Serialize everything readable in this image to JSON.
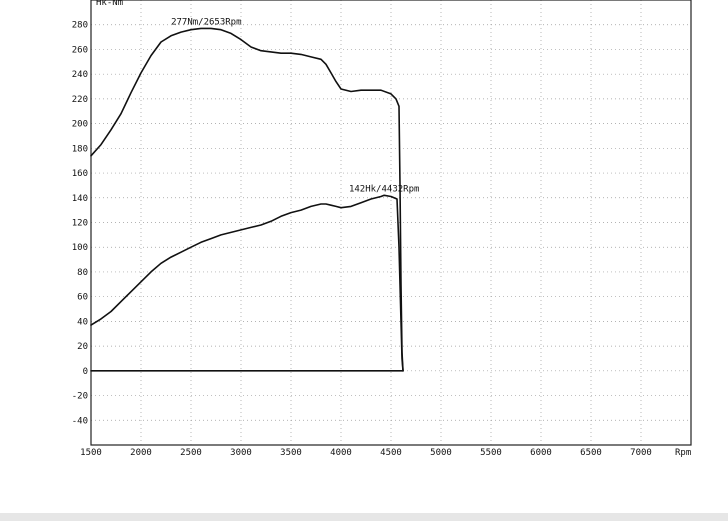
{
  "chart_data": {
    "type": "line",
    "ylabel": "Hk-Nm",
    "xlabel": "Rpm",
    "xlim": [
      1500,
      7500
    ],
    "ylim": [
      -60,
      300
    ],
    "x_ticks": [
      1500,
      2000,
      2500,
      3000,
      3500,
      4000,
      4500,
      5000,
      5500,
      6000,
      6500,
      7000
    ],
    "x_tick_labels": [
      "1500",
      "2000",
      "2500",
      "3000",
      "3500",
      "4000",
      "4500",
      "5000",
      "5500",
      "6000",
      "6500",
      "7000"
    ],
    "y_ticks": [
      -40,
      -20,
      0,
      20,
      40,
      60,
      80,
      100,
      120,
      140,
      160,
      180,
      200,
      220,
      240,
      260,
      280
    ],
    "y_tick_labels": [
      "-40",
      "-20",
      "0",
      "20",
      "40",
      "60",
      "80",
      "100",
      "120",
      "140",
      "160",
      "180",
      "200",
      "220",
      "240",
      "260",
      "280"
    ],
    "grid": true,
    "series": [
      {
        "name": "",
        "x": [
          1500,
          1600,
          1700,
          1800,
          1900,
          2000,
          2100,
          2200,
          2300,
          2400,
          2500,
          2600,
          2653,
          2700,
          2800,
          2900,
          3000,
          3100,
          3200,
          3300,
          3400,
          3500,
          3600,
          3700,
          3800,
          3850,
          3900,
          3950,
          4000,
          4100,
          4200,
          4300,
          4400,
          4500,
          4550,
          4580,
          4590,
          4600,
          4610,
          4620
        ],
        "y": [
          174,
          183,
          195,
          208,
          225,
          241,
          255,
          266,
          271,
          274,
          276,
          277,
          277,
          277,
          276,
          273,
          268,
          262,
          259,
          258,
          257,
          257,
          256,
          254,
          252,
          248,
          241,
          234,
          228,
          226,
          227,
          227,
          227,
          224,
          220,
          214,
          150,
          70,
          15,
          0
        ]
      },
      {
        "name": "",
        "x": [
          1500,
          1600,
          1700,
          1800,
          1900,
          2000,
          2100,
          2200,
          2300,
          2400,
          2500,
          2600,
          2700,
          2800,
          2900,
          3000,
          3100,
          3200,
          3300,
          3400,
          3500,
          3600,
          3700,
          3800,
          3850,
          3900,
          3950,
          4000,
          4100,
          4200,
          4300,
          4400,
          4432,
          4500,
          4560,
          4580,
          4600,
          4610,
          4620
        ],
        "y": [
          37,
          42,
          48,
          56,
          64,
          72,
          80,
          87,
          92,
          96,
          100,
          104,
          107,
          110,
          112,
          114,
          116,
          118,
          121,
          125,
          128,
          130,
          133,
          135,
          135,
          134,
          133,
          132,
          133,
          136,
          139,
          141,
          142,
          141,
          139,
          100,
          40,
          10,
          0
        ]
      }
    ],
    "baseline": {
      "x": [
        1500,
        4620
      ],
      "y": [
        0,
        0
      ]
    },
    "annotations": [
      {
        "text": "277Nm/2653Rpm",
        "x": 2653,
        "y": 277
      },
      {
        "text": "142Hk/4432Rpm",
        "x": 4432,
        "y": 142
      }
    ]
  }
}
